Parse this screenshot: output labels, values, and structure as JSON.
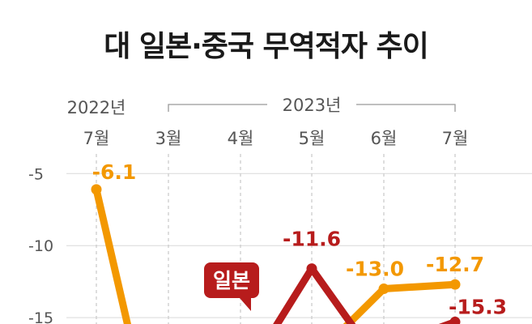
{
  "chart_data": {
    "type": "line",
    "title": "대 일본·중국 무역적자 추이",
    "year_labels": {
      "first": "2022년",
      "second": "2023년"
    },
    "categories": [
      "7월",
      "3월",
      "4월",
      "5월",
      "6월",
      "7월"
    ],
    "y_ticks": [
      "-5",
      "-10",
      "-15"
    ],
    "ylim": [
      -16.5,
      -0.5
    ],
    "grid": true,
    "series": [
      {
        "name": "",
        "color": "#f39800",
        "values": [
          -6.1,
          null,
          null,
          null,
          -13.0,
          -12.7
        ],
        "labels": [
          "-6.1",
          "",
          "",
          "",
          "-13.0",
          "-12.7"
        ]
      },
      {
        "name": "일본",
        "color": "#b71c1c",
        "values": [
          null,
          null,
          null,
          -11.6,
          null,
          -15.3
        ],
        "labels": [
          "",
          "",
          "",
          "-11.6",
          "",
          "-15.3"
        ]
      }
    ]
  }
}
